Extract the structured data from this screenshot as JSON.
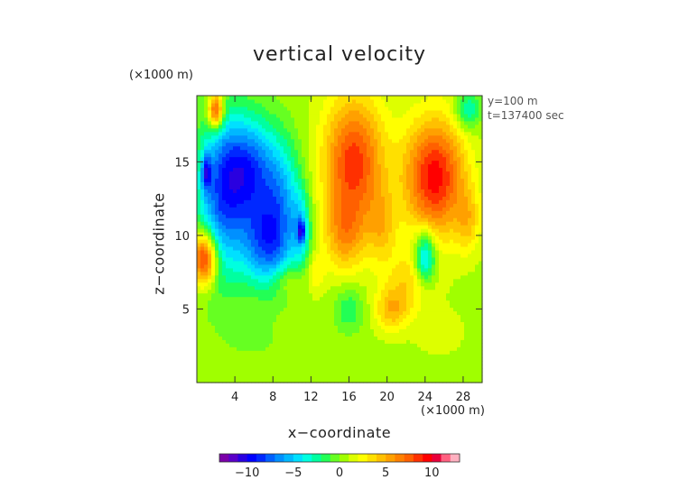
{
  "chart_data": {
    "type": "heatmap",
    "title": "vertical velocity",
    "xlabel": "x−coordinate",
    "ylabel": "z−coordinate",
    "x_unit": "(×1000 m)",
    "z_unit": "(×1000 m)",
    "annotations": [
      "y=100 m",
      "t=137400 sec"
    ],
    "xlim": [
      0,
      30
    ],
    "ylim": [
      0,
      19.5
    ],
    "x_ticks": [
      {
        "value": 4,
        "label": "4"
      },
      {
        "value": 8,
        "label": "8"
      },
      {
        "value": 12,
        "label": "12"
      },
      {
        "value": 16,
        "label": "16"
      },
      {
        "value": 20,
        "label": "20"
      },
      {
        "value": 24,
        "label": "24"
      },
      {
        "value": 28,
        "label": "28"
      }
    ],
    "y_ticks": [
      {
        "value": 5,
        "label": "5"
      },
      {
        "value": 10,
        "label": "10"
      },
      {
        "value": 15,
        "label": "15"
      }
    ],
    "colorbar": {
      "range": [
        -13,
        13
      ],
      "ticks": [
        {
          "value": -10,
          "label": "−10"
        },
        {
          "value": -5,
          "label": "−5"
        },
        {
          "value": 0,
          "label": "0"
        },
        {
          "value": 5,
          "label": "5"
        },
        {
          "value": 10,
          "label": "10"
        }
      ],
      "colors": [
        "#7a00a8",
        "#5a00c8",
        "#2a00e0",
        "#0000ff",
        "#0028ff",
        "#0060ff",
        "#0090ff",
        "#00b8ff",
        "#00e0ff",
        "#00ffe0",
        "#00ffa0",
        "#22ff55",
        "#66ff22",
        "#a0ff00",
        "#ddff00",
        "#ffff00",
        "#ffe000",
        "#ffc000",
        "#ffa000",
        "#ff8000",
        "#ff6000",
        "#ff3000",
        "#ff0000",
        "#e8003a",
        "#ff6080",
        "#ffb0c0"
      ]
    },
    "features": [
      {
        "x": 2.5,
        "z": 12.5,
        "sx": 2.6,
        "sz": 5.5,
        "w": -7
      },
      {
        "x": 5.5,
        "z": 14.5,
        "sx": 3.0,
        "sz": 3.5,
        "w": -8
      },
      {
        "x": 7.5,
        "z": 9.5,
        "sx": 2.8,
        "sz": 3.0,
        "w": -8
      },
      {
        "x": 9.0,
        "z": 13.0,
        "sx": 2.0,
        "sz": 3.5,
        "w": -4
      },
      {
        "x": 11.0,
        "z": 10.5,
        "sx": 1.0,
        "sz": 2.5,
        "w": -4
      },
      {
        "x": 1.0,
        "z": 14.3,
        "sx": 0.5,
        "sz": 1.2,
        "w": -6
      },
      {
        "x": 11.0,
        "z": 10.3,
        "sx": 0.35,
        "sz": 0.7,
        "w": -6
      },
      {
        "x": 2.0,
        "z": 18.5,
        "sx": 0.8,
        "sz": 1.2,
        "w": 9
      },
      {
        "x": 0.8,
        "z": 8.5,
        "sx": 1.3,
        "sz": 1.8,
        "w": 10
      },
      {
        "x": 16.5,
        "z": 15.0,
        "sx": 3.2,
        "sz": 4.5,
        "w": 8
      },
      {
        "x": 15.5,
        "z": 10.0,
        "sx": 2.2,
        "sz": 2.5,
        "w": 4
      },
      {
        "x": 19.5,
        "z": 10.5,
        "sx": 1.5,
        "sz": 2.5,
        "w": 3
      },
      {
        "x": 25.0,
        "z": 14.0,
        "sx": 3.2,
        "sz": 4.0,
        "w": 9
      },
      {
        "x": 24.0,
        "z": 8.5,
        "sx": 1.1,
        "sz": 1.8,
        "w": -7
      },
      {
        "x": 28.5,
        "z": 11.0,
        "sx": 1.3,
        "sz": 2.2,
        "w": 3
      },
      {
        "x": 22.5,
        "z": 7.0,
        "sx": 2.5,
        "sz": 2.0,
        "w": 3
      },
      {
        "x": 20.5,
        "z": 5.0,
        "sx": 1.8,
        "sz": 1.5,
        "w": 4
      },
      {
        "x": 16.0,
        "z": 5.0,
        "sx": 1.5,
        "sz": 1.5,
        "w": -2.5
      },
      {
        "x": 28.5,
        "z": 18.5,
        "sx": 1.3,
        "sz": 1.3,
        "w": -4
      },
      {
        "x": 9.5,
        "z": 7.0,
        "sx": 1.5,
        "sz": 1.0,
        "w": 2
      },
      {
        "x": 25.5,
        "z": 3.5,
        "sx": 2.5,
        "sz": 1.5,
        "w": 1.2
      },
      {
        "x": 6.0,
        "z": 3.0,
        "sx": 3.0,
        "sz": 1.5,
        "w": -0.8
      },
      {
        "x": 12.5,
        "z": 7.5,
        "sx": 1.0,
        "sz": 1.5,
        "w": 2
      }
    ]
  }
}
